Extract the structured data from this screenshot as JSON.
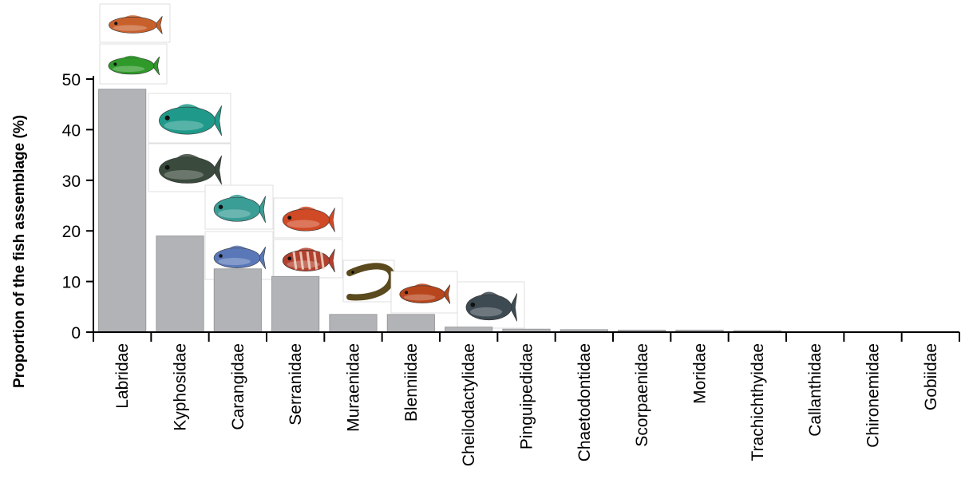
{
  "chart_data": {
    "type": "bar",
    "title": "",
    "xlabel": "",
    "ylabel": "Proportion of the fish assemblage (%)",
    "categories": [
      "Labridae",
      "Kyphosidae",
      "Carangidae",
      "Serranidae",
      "Muraenidae",
      "Blenniidae",
      "Cheilodactylidae",
      "Pinguipedidae",
      "Chaetodontidae",
      "Scorpaenidae",
      "Moridae",
      "Trachichthyidae",
      "Callanthidae",
      "Chironemidae",
      "Gobiidae"
    ],
    "values": [
      48,
      19,
      12.5,
      11,
      3.5,
      3.5,
      1,
      0.6,
      0.5,
      0.4,
      0.4,
      0.3,
      0.1,
      0.1,
      0.1
    ],
    "ylim": [
      0,
      50
    ],
    "yticks": [
      0,
      10,
      20,
      30,
      40,
      50
    ],
    "grid": false,
    "bar_color": "#b1b3b6",
    "fish_illustrations": [
      {
        "family": "Labridae",
        "icons": [
          "red-wrasse-icon",
          "green-wrasse-icon"
        ],
        "colors": [
          "#c8602c",
          "#2f9a2a"
        ]
      },
      {
        "family": "Kyphosidae",
        "icons": [
          "teal-drummer-icon",
          "dark-drummer-icon"
        ],
        "colors": [
          "#1f9a8a",
          "#3a4a3c"
        ]
      },
      {
        "family": "Carangidae",
        "icons": [
          "teal-jack-icon",
          "blue-mackerel-icon"
        ],
        "colors": [
          "#3a9d96",
          "#5a78b8"
        ]
      },
      {
        "family": "Serranidae",
        "icons": [
          "red-perch-icon",
          "banded-perch-icon"
        ],
        "colors": [
          "#d04a26",
          "#b2402e"
        ]
      },
      {
        "family": "Muraenidae",
        "icons": [
          "moray-eel-icon"
        ],
        "colors": [
          "#5b4a1e"
        ]
      },
      {
        "family": "Blenniidae",
        "icons": [
          "blenny-icon"
        ],
        "colors": [
          "#b8461c"
        ]
      },
      {
        "family": "Cheilodactylidae",
        "icons": [
          "morwong-icon"
        ],
        "colors": [
          "#3d4a52"
        ]
      }
    ]
  }
}
